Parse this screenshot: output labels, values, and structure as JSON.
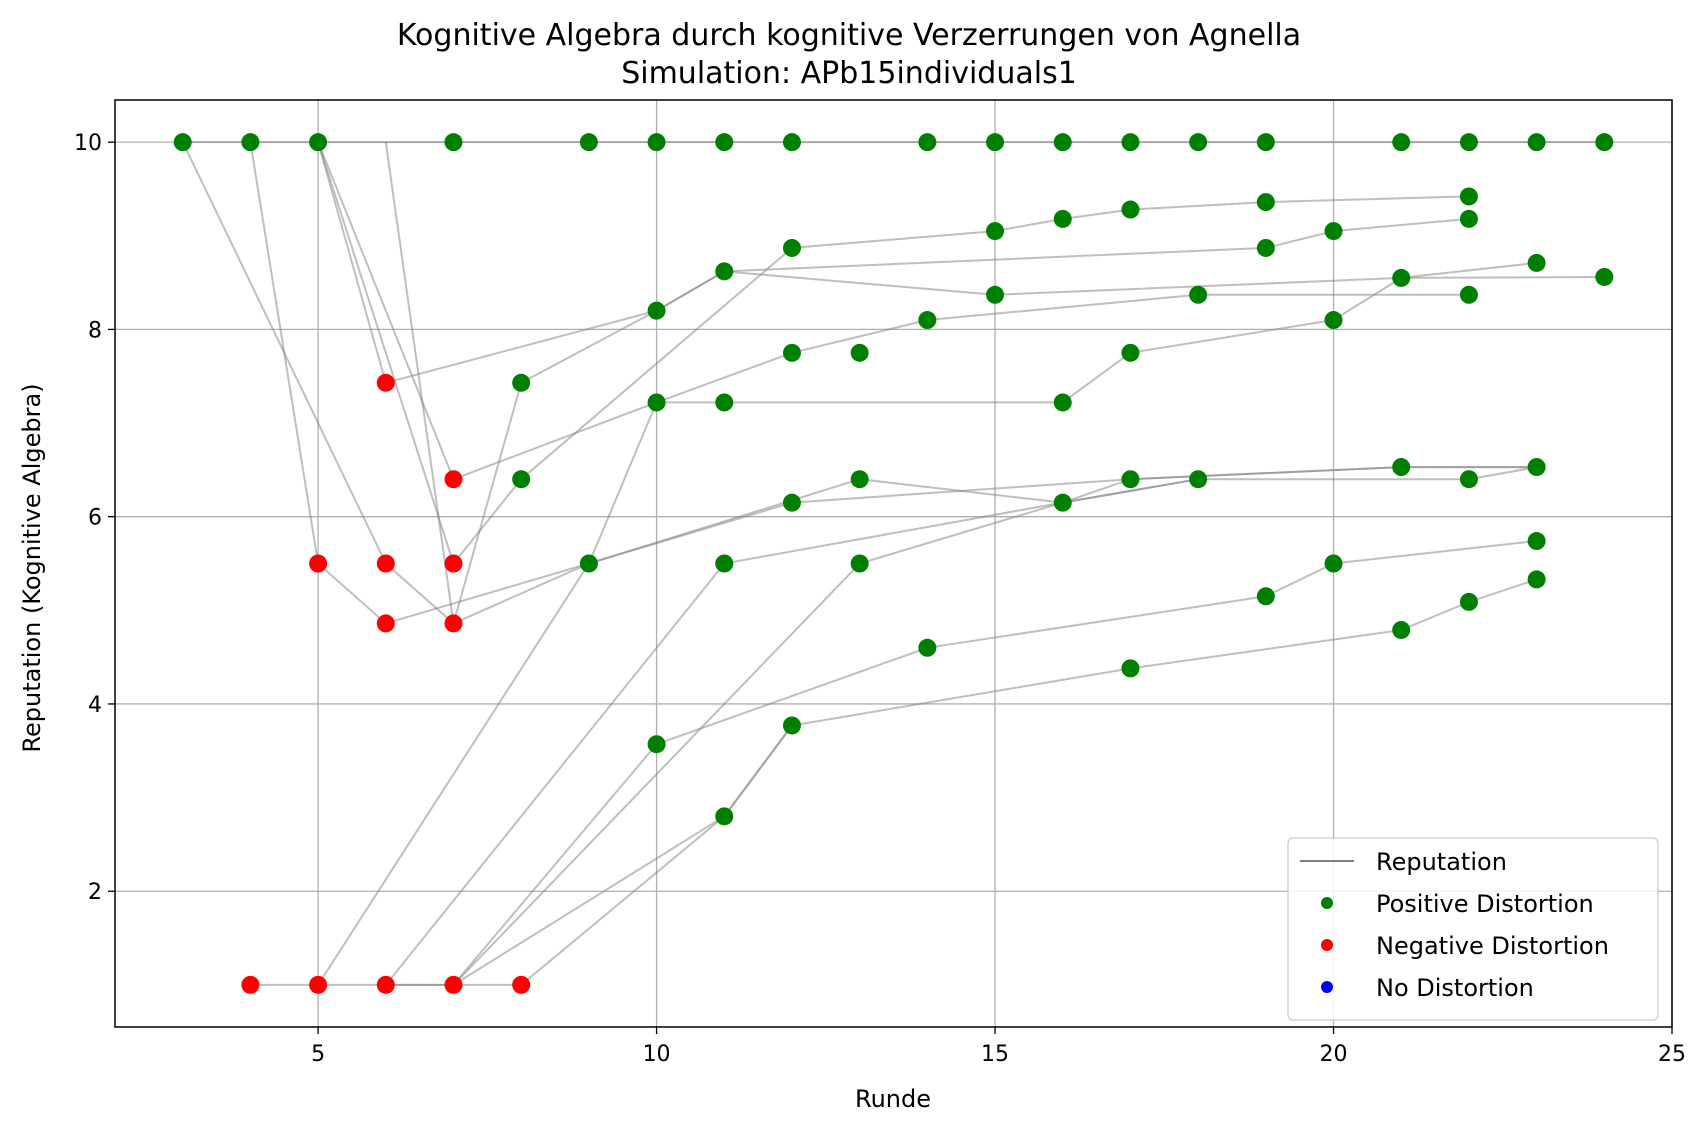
{
  "chart_data": {
    "type": "scatter",
    "title": "Kognitive Algebra durch kognitive Verzerrungen von Agnella",
    "subtitle": "Simulation: APb15individuals1",
    "xlabel": "Runde",
    "ylabel": "Reputation (Kognitive Algebra)",
    "xlim": [
      2,
      25
    ],
    "ylim": [
      0.55,
      10.45
    ],
    "xticks": [
      5,
      10,
      15,
      20,
      25
    ],
    "yticks": [
      2,
      4,
      6,
      8,
      10
    ],
    "grid": true,
    "legend_position": "lower-right",
    "colors": {
      "reputation": "#808080",
      "positive": "#008000",
      "negative": "#ff0000",
      "none": "#0000ff"
    },
    "legend": [
      {
        "label": "Reputation",
        "kind": "line",
        "color": "#808080"
      },
      {
        "label": "Positive Distortion",
        "kind": "dot",
        "color": "#008000"
      },
      {
        "label": "Negative Distortion",
        "kind": "dot",
        "color": "#ff0000"
      },
      {
        "label": "No Distortion",
        "kind": "dot",
        "color": "#0000ff"
      }
    ],
    "trajectories": [
      [
        [
          3,
          10
        ],
        [
          4,
          10
        ],
        [
          5,
          10
        ],
        [
          7,
          10
        ],
        [
          9,
          10
        ],
        [
          10,
          10
        ],
        [
          11,
          10
        ],
        [
          12,
          10
        ],
        [
          14,
          10
        ],
        [
          15,
          10
        ],
        [
          16,
          10
        ],
        [
          17,
          10
        ],
        [
          18,
          10
        ],
        [
          19,
          10
        ],
        [
          21,
          10
        ],
        [
          22,
          10
        ],
        [
          23,
          10
        ],
        [
          24,
          10
        ]
      ],
      [
        [
          3,
          10
        ],
        [
          6,
          5.5
        ],
        [
          7,
          4.86
        ],
        [
          9,
          5.5
        ],
        [
          12,
          6.15
        ],
        [
          17,
          6.4
        ],
        [
          21,
          6.53
        ],
        [
          23,
          6.53
        ]
      ],
      [
        [
          4,
          10
        ],
        [
          5,
          5.5
        ],
        [
          6,
          4.86
        ],
        [
          9,
          5.5
        ],
        [
          10,
          7.22
        ],
        [
          12,
          7.75
        ],
        [
          14,
          8.1
        ],
        [
          18,
          8.37
        ],
        [
          22,
          8.37
        ]
      ],
      [
        [
          5,
          10
        ],
        [
          6,
          7.43
        ],
        [
          10,
          8.2
        ],
        [
          11,
          8.62
        ],
        [
          19,
          8.87
        ],
        [
          20,
          9.05
        ],
        [
          22,
          9.18
        ]
      ],
      [
        [
          5,
          10
        ],
        [
          7,
          6.4
        ],
        [
          10,
          7.22
        ],
        [
          11,
          7.22
        ],
        [
          16,
          7.22
        ],
        [
          17,
          7.75
        ],
        [
          20,
          8.1
        ],
        [
          21,
          8.55
        ],
        [
          23,
          8.71
        ]
      ],
      [
        [
          5,
          10
        ],
        [
          7,
          5.5
        ],
        [
          8,
          6.4
        ],
        [
          12,
          8.87
        ],
        [
          15,
          9.05
        ],
        [
          16,
          9.18
        ],
        [
          17,
          9.28
        ],
        [
          19,
          9.36
        ],
        [
          22,
          9.42
        ]
      ],
      [
        [
          6,
          10
        ],
        [
          7,
          4.86
        ],
        [
          8,
          7.43
        ],
        [
          10,
          8.2
        ],
        [
          11,
          8.62
        ],
        [
          15,
          8.37
        ],
        [
          21,
          8.55
        ],
        [
          24,
          8.56
        ]
      ],
      [
        [
          4,
          1
        ],
        [
          5,
          1
        ],
        [
          9,
          5.5
        ],
        [
          13,
          6.4
        ],
        [
          16,
          6.15
        ],
        [
          18,
          6.4
        ],
        [
          22,
          6.4
        ],
        [
          23,
          6.53
        ]
      ],
      [
        [
          5,
          1
        ],
        [
          6,
          1
        ],
        [
          11,
          5.5
        ],
        [
          16,
          6.15
        ],
        [
          17,
          6.4
        ],
        [
          21,
          6.53
        ],
        [
          23,
          6.53
        ]
      ],
      [
        [
          6,
          1
        ],
        [
          7,
          1
        ],
        [
          10,
          3.57
        ],
        [
          14,
          4.6
        ],
        [
          19,
          5.15
        ],
        [
          20,
          5.5
        ],
        [
          23,
          5.74
        ]
      ],
      [
        [
          7,
          1
        ],
        [
          11,
          2.8
        ],
        [
          12,
          3.77
        ],
        [
          17,
          4.38
        ],
        [
          21,
          4.79
        ],
        [
          22,
          5.09
        ],
        [
          23,
          5.33
        ]
      ],
      [
        [
          6,
          1
        ],
        [
          7,
          1
        ],
        [
          13,
          5.5
        ],
        [
          16,
          6.15
        ],
        [
          18,
          6.4
        ]
      ],
      [
        [
          7,
          1
        ],
        [
          8,
          1
        ],
        [
          11,
          2.8
        ],
        [
          12,
          3.77
        ]
      ]
    ],
    "positive_points": [
      [
        3,
        10
      ],
      [
        4,
        10
      ],
      [
        5,
        10
      ],
      [
        7,
        10
      ],
      [
        9,
        10
      ],
      [
        10,
        10
      ],
      [
        11,
        10
      ],
      [
        12,
        10
      ],
      [
        14,
        10
      ],
      [
        15,
        10
      ],
      [
        16,
        10
      ],
      [
        17,
        10
      ],
      [
        18,
        10
      ],
      [
        19,
        10
      ],
      [
        21,
        10
      ],
      [
        22,
        10
      ],
      [
        23,
        10
      ],
      [
        24,
        10
      ],
      [
        22,
        9.42
      ],
      [
        19,
        9.36
      ],
      [
        17,
        9.28
      ],
      [
        16,
        9.18
      ],
      [
        22,
        9.18
      ],
      [
        15,
        9.05
      ],
      [
        20,
        9.05
      ],
      [
        12,
        8.87
      ],
      [
        19,
        8.87
      ],
      [
        23,
        8.71
      ],
      [
        11,
        8.62
      ],
      [
        21,
        8.55
      ],
      [
        24,
        8.56
      ],
      [
        15,
        8.37
      ],
      [
        18,
        8.37
      ],
      [
        22,
        8.37
      ],
      [
        10,
        8.2
      ],
      [
        14,
        8.1
      ],
      [
        20,
        8.1
      ],
      [
        12,
        7.75
      ],
      [
        13,
        7.75
      ],
      [
        17,
        7.75
      ],
      [
        8,
        7.43
      ],
      [
        10,
        7.22
      ],
      [
        11,
        7.22
      ],
      [
        16,
        7.22
      ],
      [
        8,
        6.4
      ],
      [
        13,
        6.4
      ],
      [
        17,
        6.4
      ],
      [
        18,
        6.4
      ],
      [
        22,
        6.4
      ],
      [
        21,
        6.53
      ],
      [
        23,
        6.53
      ],
      [
        12,
        6.15
      ],
      [
        16,
        6.15
      ],
      [
        9,
        5.5
      ],
      [
        11,
        5.5
      ],
      [
        13,
        5.5
      ],
      [
        20,
        5.5
      ],
      [
        23,
        5.74
      ],
      [
        23,
        5.33
      ],
      [
        19,
        5.15
      ],
      [
        22,
        5.09
      ],
      [
        21,
        4.79
      ],
      [
        14,
        4.6
      ],
      [
        17,
        4.38
      ],
      [
        12,
        3.77
      ],
      [
        10,
        3.57
      ],
      [
        11,
        2.8
      ]
    ],
    "negative_points": [
      [
        6,
        7.43
      ],
      [
        7,
        6.4
      ],
      [
        5,
        5.5
      ],
      [
        6,
        5.5
      ],
      [
        7,
        5.5
      ],
      [
        6,
        4.86
      ],
      [
        7,
        4.86
      ],
      [
        4,
        1
      ],
      [
        5,
        1
      ],
      [
        6,
        1
      ],
      [
        7,
        1
      ],
      [
        8,
        1
      ]
    ],
    "no_distortion_points": []
  }
}
